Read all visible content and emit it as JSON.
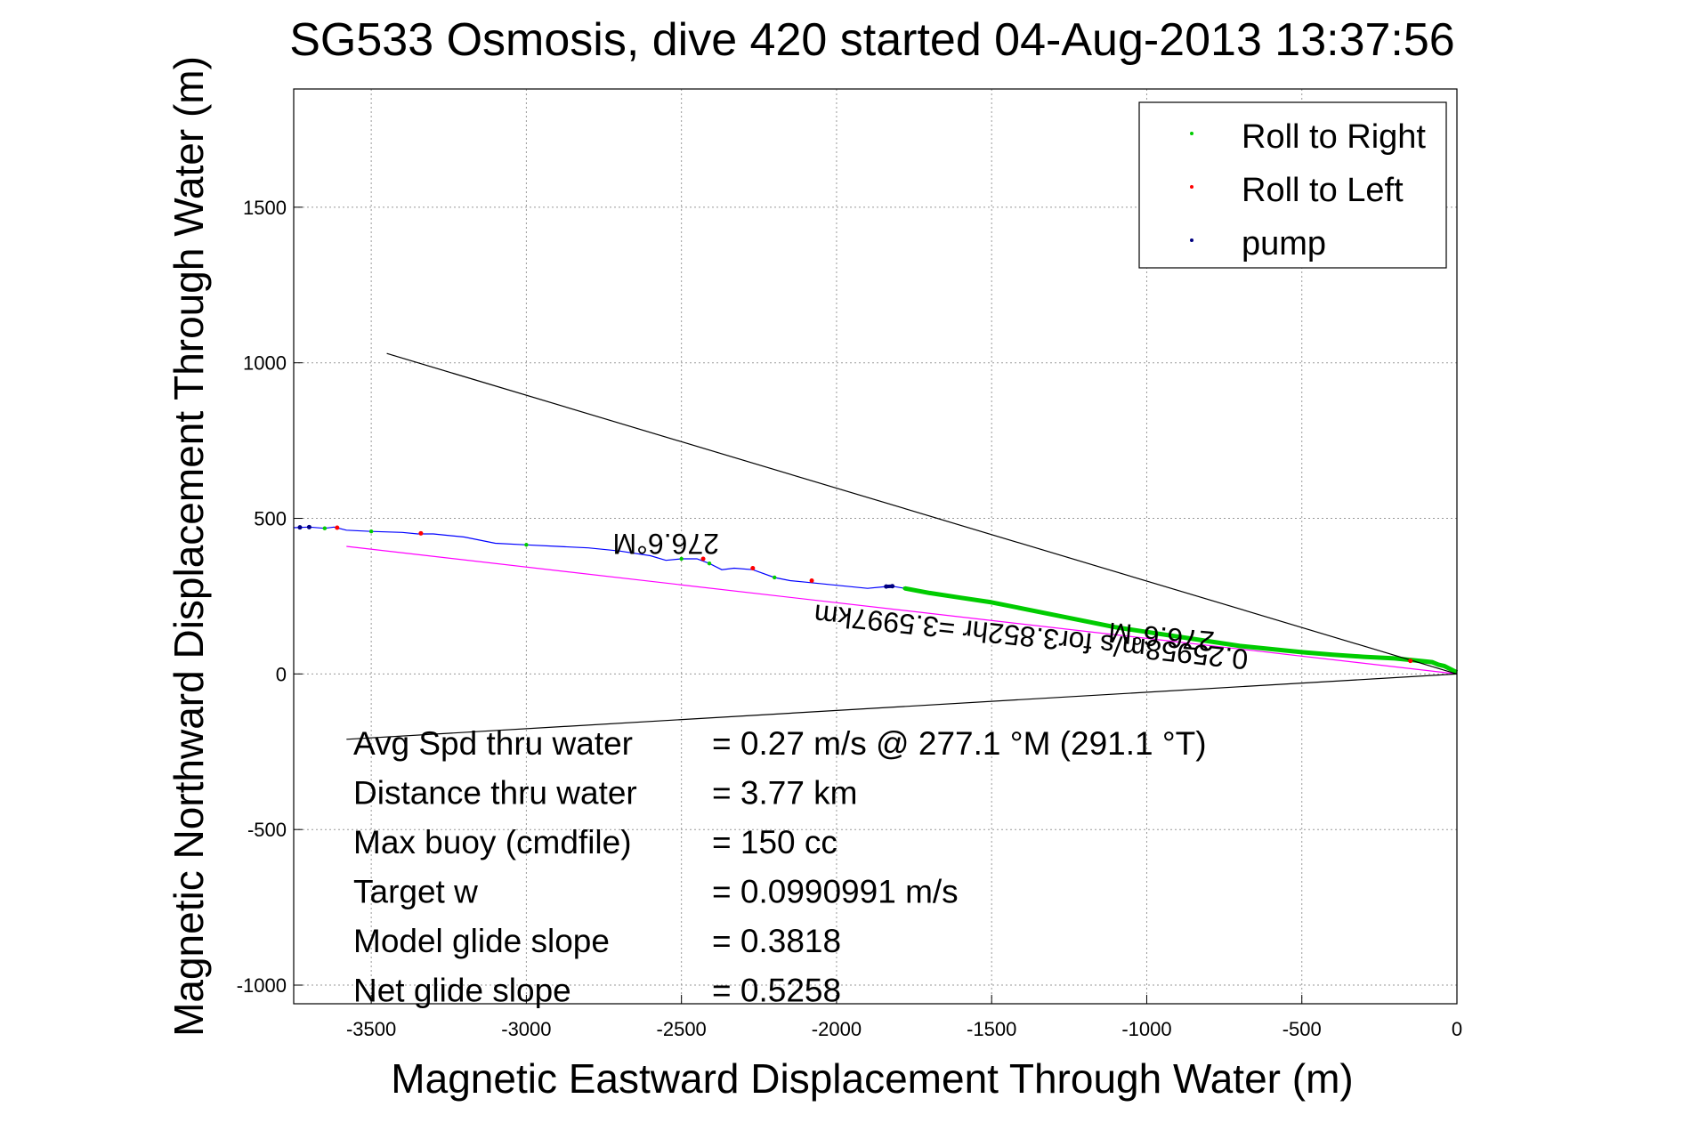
{
  "chart_data": {
    "type": "line",
    "title": "SG533 Osmosis, dive 420 started 04-Aug-2013 13:37:56",
    "xlabel": "Magnetic Eastward Displacement Through Water (m)",
    "ylabel": "Magnetic Northward Displacement Through Water (m)",
    "xlim": [
      -3750,
      0
    ],
    "ylim": [
      -1060,
      1880
    ],
    "x_ticks": [
      -3500,
      -3000,
      -2500,
      -2000,
      -1500,
      -1000,
      -500,
      0
    ],
    "x_tick_labels": [
      "-3500",
      "-3000",
      "-2500",
      "-2000",
      "-1500",
      "-1000",
      "-500",
      "0"
    ],
    "y_ticks": [
      -1000,
      -500,
      0,
      500,
      1000,
      1500
    ],
    "y_tick_labels": [
      "-1000",
      "-500",
      "0",
      "500",
      "1000",
      "1500"
    ],
    "grid": true,
    "legend_position": "top-right",
    "legend": [
      {
        "label": "Roll to Right",
        "color": "#00cc00"
      },
      {
        "label": "Roll to Left",
        "color": "#ff0000"
      },
      {
        "label": "pump",
        "color": "#000080"
      }
    ],
    "series": [
      {
        "color": "#0000ff",
        "x": [
          0,
          -40,
          -80,
          -130,
          -200,
          -300,
          -400,
          -500,
          -600,
          -700,
          -800,
          -900,
          -1000,
          -1100,
          -1200,
          -1300,
          -1400,
          -1500,
          -1600,
          -1700,
          -1780,
          -1820,
          -1850,
          -1900,
          -2000,
          -2100,
          -2150,
          -2200,
          -2270,
          -2330,
          -2370,
          -2410,
          -2450,
          -2500,
          -2550,
          -2600,
          -2700,
          -2800,
          -2900,
          -3000,
          -3100,
          -3200,
          -3300,
          -3350,
          -3400,
          -3500,
          -3580,
          -3620,
          -3650,
          -3700,
          -3750
        ],
        "y": [
          0,
          20,
          35,
          45,
          50,
          55,
          60,
          70,
          80,
          90,
          105,
          120,
          135,
          150,
          170,
          190,
          210,
          230,
          245,
          260,
          275,
          282,
          280,
          275,
          285,
          295,
          300,
          310,
          335,
          340,
          335,
          355,
          370,
          370,
          365,
          380,
          395,
          405,
          410,
          415,
          420,
          440,
          450,
          450,
          455,
          458,
          462,
          472,
          468,
          472,
          470
        ]
      },
      {
        "name": "Roll to Right",
        "color": "#00cc00",
        "x": [
          0,
          -20,
          -40,
          -60,
          -80,
          -100,
          -150,
          -200,
          -300,
          -400,
          -500,
          -600,
          -700,
          -800,
          -900,
          -1000,
          -1100,
          -1200,
          -1300,
          -1400,
          -1500,
          -1600,
          -1700,
          -1780
        ],
        "y": [
          5,
          15,
          25,
          30,
          38,
          40,
          45,
          50,
          55,
          62,
          70,
          80,
          90,
          105,
          120,
          135,
          150,
          170,
          190,
          210,
          230,
          245,
          260,
          275
        ]
      },
      {
        "name": "Roll to Left",
        "color": "#ff0000",
        "x": [
          -150,
          -2430,
          -2270,
          -2080,
          -3340,
          -3610
        ],
        "y": [
          42,
          370,
          340,
          300,
          452,
          470
        ]
      },
      {
        "name": "pump",
        "color": "#000080",
        "x": [
          -1820,
          -1840,
          -3700,
          -3730
        ],
        "y": [
          282,
          281,
          472,
          471
        ]
      },
      {
        "color": "#ff00ff",
        "x": [
          0,
          -3580
        ],
        "y": [
          0,
          410
        ]
      },
      {
        "color": "#000000",
        "x": [
          0,
          -3450
        ],
        "y": [
          0,
          1030
        ]
      },
      {
        "color": "#000000",
        "x": [
          0,
          -3580
        ],
        "y": [
          0,
          -210
        ]
      }
    ],
    "annotations": [
      {
        "text": "276.6°M",
        "x": -2550,
        "y": 450,
        "rotation_deg": 180
      },
      {
        "text": "276.6°M",
        "x": -950,
        "y": 150,
        "rotation_deg": 185
      },
      {
        "text": "0.25958m/s for3.852hr =3.5997km",
        "x": -1370,
        "y": 150,
        "rotation_deg": 186
      }
    ],
    "stats": [
      {
        "label": "Avg Spd thru water",
        "value": "=  0.27 m/s @ 277.1 °M (291.1 °T)"
      },
      {
        "label": "Distance thru water",
        "value": "=  3.77 km"
      },
      {
        "label": "Max buoy (cmdfile)",
        "value": "= 150 cc"
      },
      {
        "label": "Target w",
        "value": "= 0.0990991 m/s"
      },
      {
        "label": "Model glide slope",
        "value": "= 0.3818"
      },
      {
        "label": "Net glide slope",
        "value": "= 0.5258"
      }
    ]
  }
}
